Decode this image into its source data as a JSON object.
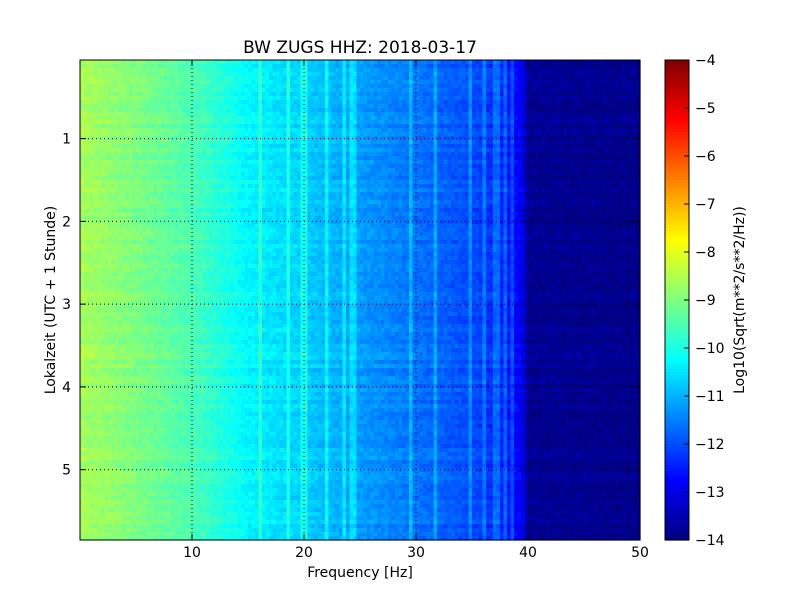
{
  "chart_data": {
    "type": "heatmap",
    "title": "BW ZUGS HHZ: 2018-03-17",
    "xlabel": "Frequency [Hz]",
    "ylabel": "Lokalzeit (UTC + 1 Stunde)",
    "xlim": [
      0,
      50
    ],
    "ylim": [
      5.85,
      0.05
    ],
    "x_ticks": [
      10,
      20,
      30,
      40,
      50
    ],
    "y_ticks": [
      1,
      2,
      3,
      4,
      5
    ],
    "grid": true,
    "colormap": "jet",
    "colorbar": {
      "label": "Log10(Sqrt(m**2/s**2/Hz))",
      "range": [
        -14,
        -4
      ],
      "ticks": [
        -4,
        -5,
        -6,
        -7,
        -8,
        -9,
        -10,
        -11,
        -12,
        -13,
        -14
      ]
    },
    "spectrum_profile": [
      {
        "frequency": 0,
        "value": -8.6
      },
      {
        "frequency": 5,
        "value": -9.0
      },
      {
        "frequency": 10,
        "value": -9.5
      },
      {
        "frequency": 12,
        "value": -9.8
      },
      {
        "frequency": 15,
        "value": -10.3
      },
      {
        "frequency": 20,
        "value": -10.7
      },
      {
        "frequency": 25,
        "value": -11.2
      },
      {
        "frequency": 30,
        "value": -11.6
      },
      {
        "frequency": 35,
        "value": -12.0
      },
      {
        "frequency": 38,
        "value": -12.4
      },
      {
        "frequency": 39.5,
        "value": -12.9
      },
      {
        "frequency": 40,
        "value": -13.8
      },
      {
        "frequency": 50,
        "value": -13.9
      }
    ],
    "bright_lines_hz": [
      16.2,
      18.6,
      20.0,
      22.0,
      23.5,
      24.2,
      24.6,
      29.5,
      31.6,
      34.8,
      36.0,
      37.2,
      38.0,
      38.5
    ],
    "colors": {
      "grid": "#000000",
      "frame": "#000000"
    }
  }
}
